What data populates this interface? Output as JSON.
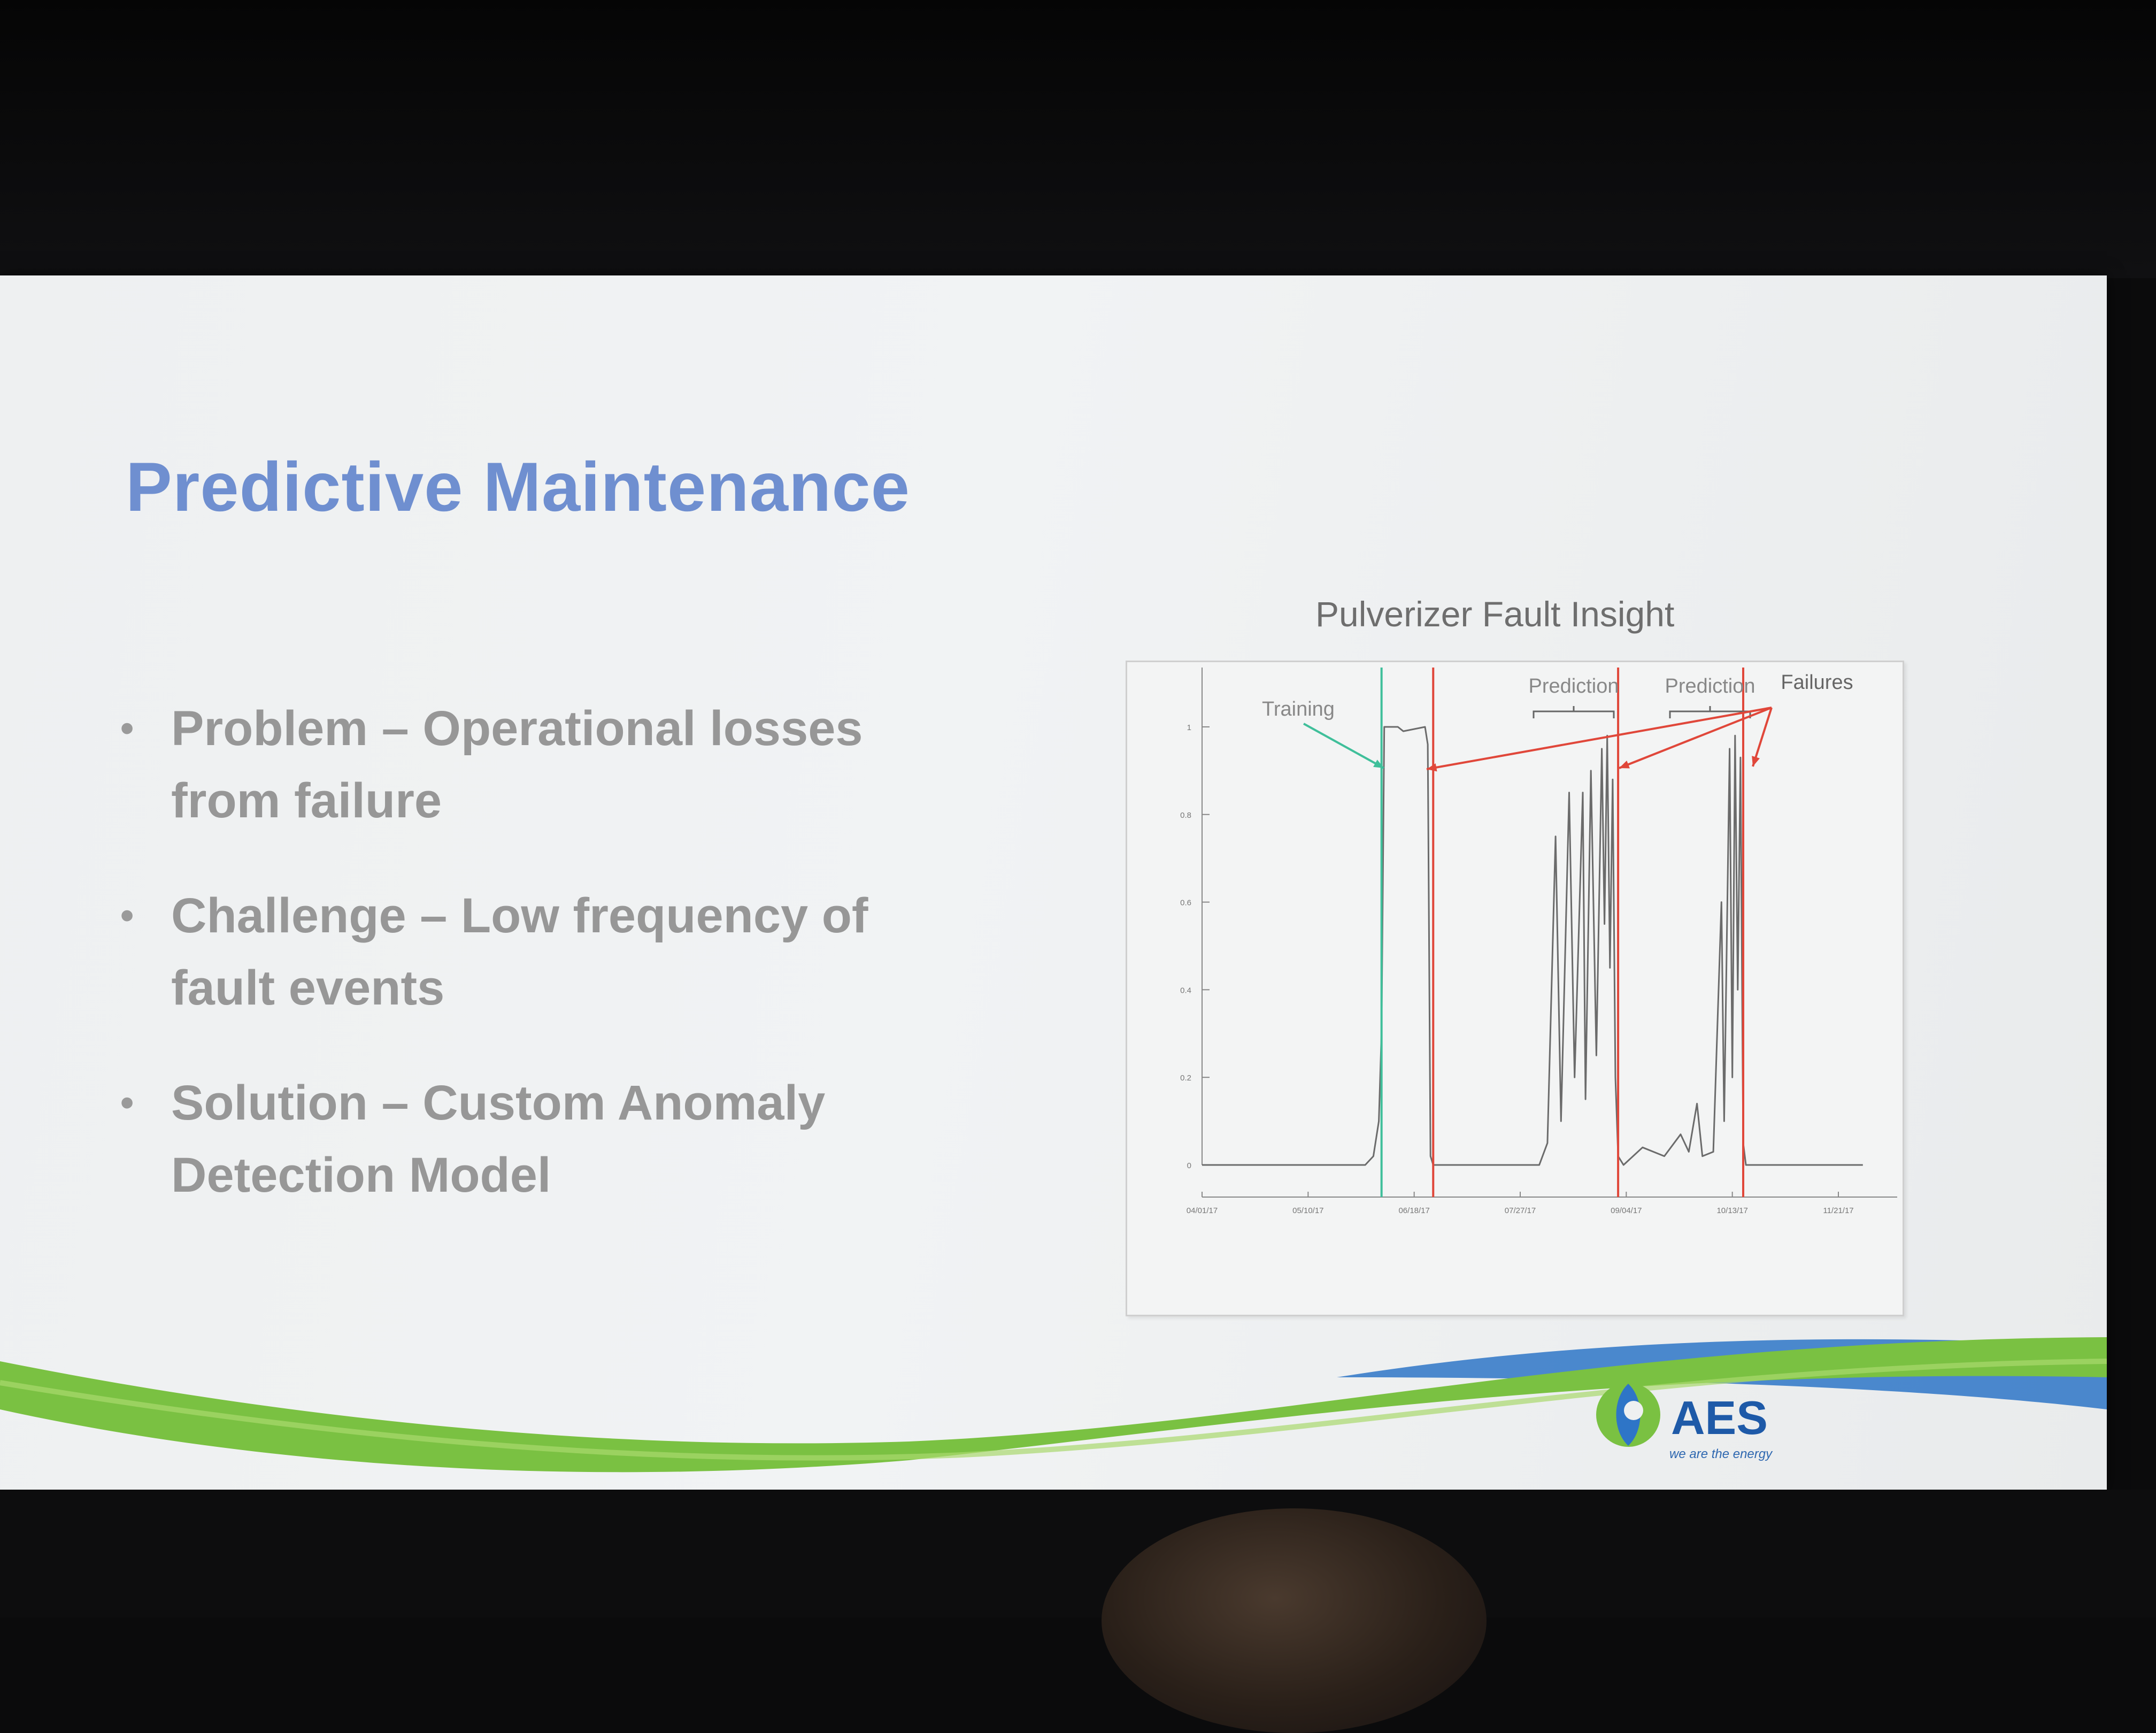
{
  "slide": {
    "title": "Predictive Maintenance",
    "bullets": [
      {
        "line1": "Problem – Operational losses",
        "line2": "from failure"
      },
      {
        "line1": "Challenge – Low frequency of",
        "line2": "fault events"
      },
      {
        "line1": "Solution – Custom Anomaly",
        "line2": "Detection Model"
      }
    ],
    "bullet_marker": "•"
  },
  "chart_data": {
    "type": "line",
    "title": "Pulverizer Fault Insight",
    "x_ticks": [
      "04/01/17",
      "05/10/17",
      "06/18/17",
      "07/27/17",
      "09/04/17",
      "10/13/17",
      "11/21/17"
    ],
    "y_ticks": [
      "0",
      "0.2",
      "0.4",
      "0.6",
      "0.8",
      "1"
    ],
    "ylim": [
      0,
      1
    ],
    "xlim": [
      "04/01/17",
      "11/21/17"
    ],
    "annotations": [
      "Training",
      "Prediction",
      "Prediction",
      "Failures"
    ],
    "vertical_lines": [
      {
        "label": "Training",
        "date": "06/06/17",
        "color": "#3fbf9a"
      },
      {
        "label": "Failures",
        "date": "06/25/17",
        "color": "#e0473a"
      },
      {
        "label": "Failures",
        "date": "09/01/17",
        "color": "#e0473a"
      },
      {
        "label": "Failures",
        "date": "10/17/17",
        "color": "#e0473a"
      }
    ],
    "series": [
      {
        "color": "#6b6b6b",
        "points": [
          [
            "04/01/17",
            0.0
          ],
          [
            "05/10/17",
            0.0
          ],
          [
            "05/31/17",
            0.0
          ],
          [
            "06/03/17",
            0.02
          ],
          [
            "06/05/17",
            0.1
          ],
          [
            "06/06/17",
            0.3
          ],
          [
            "06/07/17",
            1.0
          ],
          [
            "06/12/17",
            1.0
          ],
          [
            "06/14/17",
            0.99
          ],
          [
            "06/22/17",
            1.0
          ],
          [
            "06/23/17",
            0.96
          ],
          [
            "06/24/17",
            0.02
          ],
          [
            "06/25/17",
            0.0
          ],
          [
            "07/27/17",
            0.0
          ],
          [
            "08/03/17",
            0.0
          ],
          [
            "08/06/17",
            0.05
          ],
          [
            "08/09/17",
            0.75
          ],
          [
            "08/11/17",
            0.1
          ],
          [
            "08/14/17",
            0.85
          ],
          [
            "08/16/17",
            0.2
          ],
          [
            "08/19/17",
            0.85
          ],
          [
            "08/20/17",
            0.15
          ],
          [
            "08/22/17",
            0.9
          ],
          [
            "08/24/17",
            0.25
          ],
          [
            "08/26/17",
            0.95
          ],
          [
            "08/27/17",
            0.55
          ],
          [
            "08/28/17",
            0.98
          ],
          [
            "08/29/17",
            0.45
          ],
          [
            "08/30/17",
            0.88
          ],
          [
            "08/31/17",
            0.2
          ],
          [
            "09/01/17",
            0.02
          ],
          [
            "09/03/17",
            0.0
          ],
          [
            "09/10/17",
            0.04
          ],
          [
            "09/18/17",
            0.02
          ],
          [
            "09/24/17",
            0.07
          ],
          [
            "09/27/17",
            0.03
          ],
          [
            "09/30/17",
            0.14
          ],
          [
            "10/02/17",
            0.02
          ],
          [
            "10/06/17",
            0.03
          ],
          [
            "10/09/17",
            0.6
          ],
          [
            "10/10/17",
            0.1
          ],
          [
            "10/12/17",
            0.95
          ],
          [
            "10/13/17",
            0.2
          ],
          [
            "10/14/17",
            0.98
          ],
          [
            "10/15/17",
            0.4
          ],
          [
            "10/16/17",
            0.93
          ],
          [
            "10/17/17",
            0.05
          ],
          [
            "10/18/17",
            0.0
          ],
          [
            "11/21/17",
            0.0
          ],
          [
            "11/30/17",
            0.0
          ]
        ]
      }
    ]
  },
  "logo": {
    "name": "AES",
    "tagline": "we are the energy"
  },
  "colors": {
    "title": "#6f8fd0",
    "bullet_text": "#979797",
    "green_wave": "#7ac142",
    "blue_wave": "#2e75c7",
    "failure_red": "#e0473a",
    "training_teal": "#3fbf9a"
  }
}
